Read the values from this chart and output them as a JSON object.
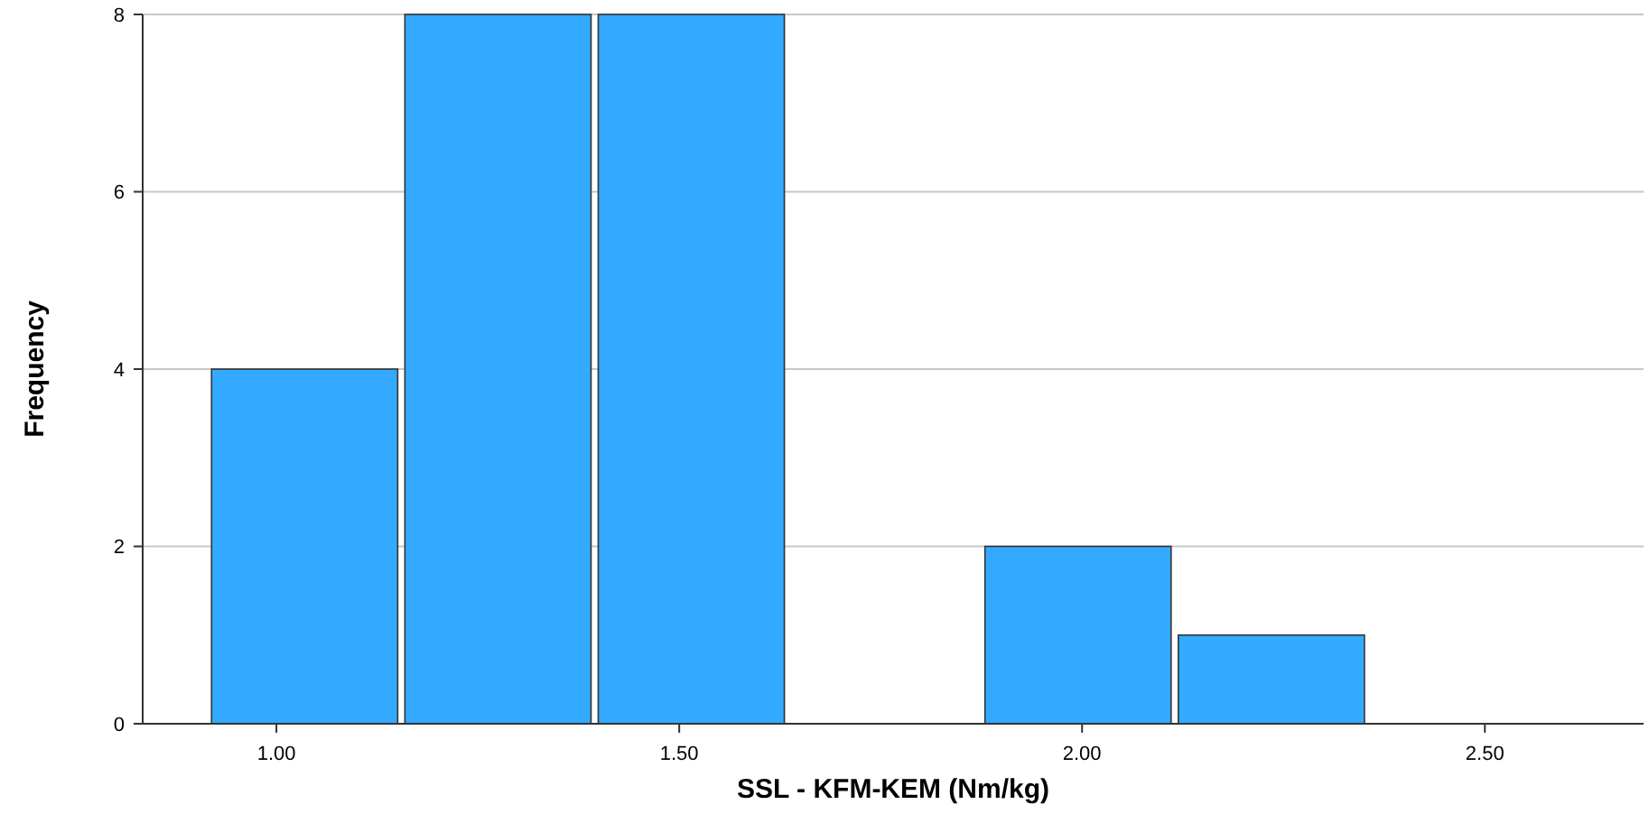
{
  "chart_data": {
    "type": "histogram",
    "xlabel": "SSL - KFM-KEM (Nm/kg)",
    "ylabel": "Frequency",
    "bins": [
      0.915,
      1.155,
      1.395,
      1.635,
      1.875,
      2.115,
      2.355
    ],
    "values": [
      4,
      8,
      8,
      0,
      2,
      1
    ],
    "color": "#33aaff",
    "xlim": [
      0.834,
      2.697
    ],
    "xticks": [
      {
        "value": 1,
        "label": "1.00"
      },
      {
        "value": 1.5,
        "label": "1.50"
      },
      {
        "value": 2,
        "label": "2.00"
      },
      {
        "value": 2.5,
        "label": "2.50"
      }
    ],
    "ylim": [
      0,
      8
    ],
    "yticks": [
      0,
      2,
      4,
      6,
      8
    ],
    "grid": "y"
  }
}
